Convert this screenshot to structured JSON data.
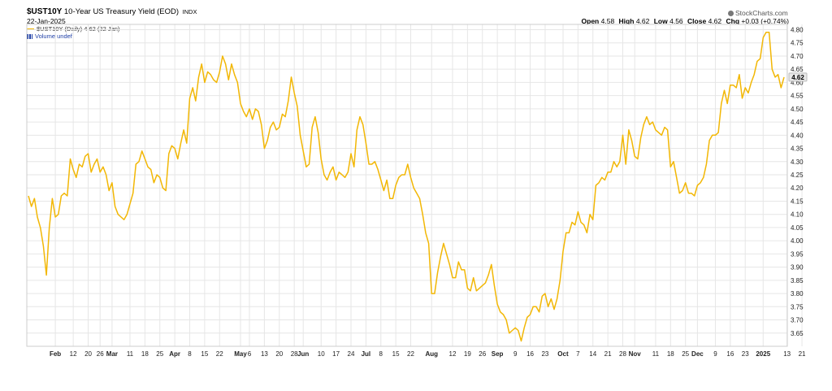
{
  "header": {
    "symbol": "$UST10Y",
    "description": "10-Year US Treasury Yield (EOD)",
    "exchange": "INDX",
    "date": "22-Jan-2025",
    "brand": "StockCharts.com",
    "legend_series": "$UST10Y (Daily) 4.62 (22 Jan)",
    "legend_volume": "Volume undef",
    "ohlc": {
      "open_label": "Open",
      "open": "4.58",
      "high_label": "High",
      "high": "4.62",
      "low_label": "Low",
      "low": "4.56",
      "close_label": "Close",
      "close": "4.62",
      "chg_label": "Chg",
      "chg": "+0.03 (+0.74%)"
    },
    "last_value": "4.62"
  },
  "colors": {
    "line": "#f2b705",
    "grid": "#e6e6e6",
    "badge": "#e8e8e8"
  },
  "chart_data": {
    "type": "line",
    "title": "$UST10Y 10-Year US Treasury Yield (EOD)",
    "xlabel": "",
    "ylabel": "",
    "ylim": [
      3.6,
      4.82
    ],
    "y_ticks": [
      3.65,
      3.7,
      3.75,
      3.8,
      3.85,
      3.9,
      3.95,
      4.0,
      4.05,
      4.1,
      4.15,
      4.2,
      4.25,
      4.3,
      4.35,
      4.4,
      4.45,
      4.5,
      4.55,
      4.6,
      4.65,
      4.7,
      4.75,
      4.8
    ],
    "grid": true,
    "legend": "top-left",
    "x_ticks": [
      {
        "label": "Feb",
        "i": 9,
        "bold": true
      },
      {
        "label": "12",
        "i": 15
      },
      {
        "label": "20",
        "i": 20
      },
      {
        "label": "26",
        "i": 24
      },
      {
        "label": "Mar",
        "i": 28,
        "bold": true
      },
      {
        "label": "11",
        "i": 34
      },
      {
        "label": "18",
        "i": 39
      },
      {
        "label": "25",
        "i": 44
      },
      {
        "label": "Apr",
        "i": 49,
        "bold": true
      },
      {
        "label": "8",
        "i": 54
      },
      {
        "label": "15",
        "i": 59
      },
      {
        "label": "22",
        "i": 64
      },
      {
        "label": "May",
        "i": 71,
        "bold": true
      },
      {
        "label": "6",
        "i": 74
      },
      {
        "label": "13",
        "i": 79
      },
      {
        "label": "20",
        "i": 84
      },
      {
        "label": "28",
        "i": 89
      },
      {
        "label": "Jun",
        "i": 92,
        "bold": true
      },
      {
        "label": "10",
        "i": 98
      },
      {
        "label": "17",
        "i": 103
      },
      {
        "label": "24",
        "i": 108
      },
      {
        "label": "Jul",
        "i": 113,
        "bold": true
      },
      {
        "label": "8",
        "i": 118
      },
      {
        "label": "15",
        "i": 123
      },
      {
        "label": "22",
        "i": 128
      },
      {
        "label": "Aug",
        "i": 135,
        "bold": true
      },
      {
        "label": "12",
        "i": 142
      },
      {
        "label": "19",
        "i": 147
      },
      {
        "label": "26",
        "i": 152
      },
      {
        "label": "Sep",
        "i": 157,
        "bold": true
      },
      {
        "label": "9",
        "i": 163
      },
      {
        "label": "16",
        "i": 168
      },
      {
        "label": "23",
        "i": 173
      },
      {
        "label": "Oct",
        "i": 179,
        "bold": true
      },
      {
        "label": "7",
        "i": 184
      },
      {
        "label": "14",
        "i": 189
      },
      {
        "label": "21",
        "i": 194
      },
      {
        "label": "28",
        "i": 199
      },
      {
        "label": "Nov",
        "i": 203,
        "bold": true
      },
      {
        "label": "11",
        "i": 210
      },
      {
        "label": "18",
        "i": 215
      },
      {
        "label": "25",
        "i": 220
      },
      {
        "label": "Dec",
        "i": 224,
        "bold": true
      },
      {
        "label": "9",
        "i": 230
      },
      {
        "label": "16",
        "i": 235
      },
      {
        "label": "23",
        "i": 240
      },
      {
        "label": "2025",
        "i": 246,
        "bold": true
      },
      {
        "label": "13",
        "i": 254
      },
      {
        "label": "21",
        "i": 259
      }
    ],
    "series": [
      {
        "name": "$UST10Y",
        "values": [
          4.17,
          4.13,
          4.16,
          4.09,
          4.05,
          3.98,
          3.87,
          4.05,
          4.16,
          4.09,
          4.1,
          4.17,
          4.18,
          4.17,
          4.31,
          4.27,
          4.24,
          4.29,
          4.28,
          4.32,
          4.33,
          4.26,
          4.29,
          4.31,
          4.26,
          4.28,
          4.25,
          4.19,
          4.22,
          4.13,
          4.1,
          4.09,
          4.08,
          4.1,
          4.14,
          4.18,
          4.29,
          4.3,
          4.34,
          4.31,
          4.28,
          4.27,
          4.22,
          4.25,
          4.24,
          4.2,
          4.19,
          4.33,
          4.36,
          4.35,
          4.31,
          4.37,
          4.42,
          4.37,
          4.54,
          4.58,
          4.53,
          4.62,
          4.67,
          4.6,
          4.64,
          4.63,
          4.61,
          4.6,
          4.64,
          4.7,
          4.67,
          4.61,
          4.67,
          4.63,
          4.6,
          4.52,
          4.49,
          4.47,
          4.5,
          4.46,
          4.5,
          4.49,
          4.44,
          4.35,
          4.38,
          4.43,
          4.45,
          4.42,
          4.43,
          4.48,
          4.47,
          4.53,
          4.62,
          4.56,
          4.51,
          4.4,
          4.34,
          4.28,
          4.29,
          4.43,
          4.47,
          4.41,
          4.31,
          4.25,
          4.23,
          4.26,
          4.28,
          4.23,
          4.26,
          4.25,
          4.24,
          4.26,
          4.33,
          4.28,
          4.42,
          4.47,
          4.44,
          4.37,
          4.29,
          4.29,
          4.3,
          4.27,
          4.23,
          4.19,
          4.23,
          4.16,
          4.16,
          4.21,
          4.24,
          4.25,
          4.25,
          4.29,
          4.24,
          4.2,
          4.18,
          4.16,
          4.1,
          4.03,
          3.99,
          3.8,
          3.8,
          3.88,
          3.94,
          3.99,
          3.95,
          3.91,
          3.86,
          3.86,
          3.92,
          3.89,
          3.89,
          3.82,
          3.81,
          3.86,
          3.81,
          3.82,
          3.83,
          3.84,
          3.87,
          3.91,
          3.83,
          3.76,
          3.73,
          3.72,
          3.7,
          3.65,
          3.66,
          3.67,
          3.66,
          3.62,
          3.67,
          3.71,
          3.72,
          3.75,
          3.75,
          3.73,
          3.79,
          3.8,
          3.75,
          3.78,
          3.74,
          3.78,
          3.85,
          3.96,
          4.03,
          4.03,
          4.07,
          4.06,
          4.11,
          4.07,
          4.06,
          4.03,
          4.1,
          4.08,
          4.21,
          4.22,
          4.24,
          4.23,
          4.26,
          4.26,
          4.3,
          4.28,
          4.3,
          4.4,
          4.29,
          4.42,
          4.38,
          4.32,
          4.31,
          4.39,
          4.44,
          4.47,
          4.44,
          4.45,
          4.42,
          4.41,
          4.4,
          4.43,
          4.42,
          4.28,
          4.3,
          4.24,
          4.18,
          4.19,
          4.22,
          4.18,
          4.18,
          4.17,
          4.21,
          4.22,
          4.24,
          4.29,
          4.38,
          4.4,
          4.4,
          4.41,
          4.52,
          4.57,
          4.52,
          4.59,
          4.59,
          4.58,
          4.63,
          4.54,
          4.58,
          4.56,
          4.6,
          4.63,
          4.68,
          4.69,
          4.77,
          4.79,
          4.79,
          4.65,
          4.62,
          4.63,
          4.58,
          4.62
        ]
      }
    ]
  }
}
